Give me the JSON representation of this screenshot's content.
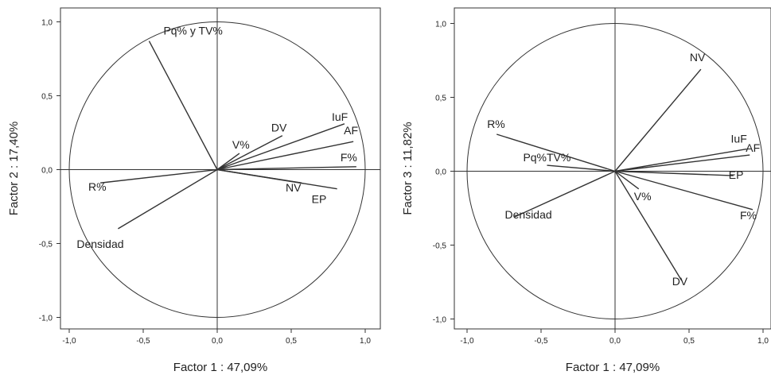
{
  "chart_data": [
    {
      "type": "scatter",
      "title": "",
      "xlabel": "Factor 1 : 47,09%",
      "ylabel": "Factor 2 : 17,40%",
      "xlim": [
        -1.0,
        1.0
      ],
      "ylim": [
        -1.0,
        1.0
      ],
      "x_ticks": [
        "-1,0",
        "-0,5",
        "0,0",
        "0,5",
        "1,0"
      ],
      "y_ticks": [
        "1,0",
        "0,5",
        "0,0",
        "-0,5",
        "-1,0"
      ],
      "unit_circle": true,
      "vectors": [
        {
          "label": "Pq% y TV%",
          "x": -0.46,
          "y": 0.87
        },
        {
          "label": "DV",
          "x": 0.44,
          "y": 0.23
        },
        {
          "label": "V%",
          "x": 0.15,
          "y": 0.11
        },
        {
          "label": "IuF",
          "x": 0.86,
          "y": 0.31
        },
        {
          "label": "AF",
          "x": 0.92,
          "y": 0.19
        },
        {
          "label": "F%",
          "x": 0.94,
          "y": 0.02
        },
        {
          "label": "NV",
          "x": 0.57,
          "y": -0.09
        },
        {
          "label": "EP",
          "x": 0.81,
          "y": -0.13
        },
        {
          "label": "R%",
          "x": -0.79,
          "y": -0.09
        },
        {
          "label": "Densidad",
          "x": -0.67,
          "y": -0.4
        }
      ]
    },
    {
      "type": "scatter",
      "title": "",
      "xlabel": "Factor 1 : 47,09%",
      "ylabel": "Factor 3 : 11,82%",
      "xlim": [
        -1.0,
        1.0
      ],
      "ylim": [
        -1.0,
        1.0
      ],
      "x_ticks": [
        "-1,0",
        "-0,5",
        "0,0",
        "0,5",
        "1,0"
      ],
      "y_ticks": [
        "1,0",
        "0,5",
        "0,0",
        "-0,5",
        "-1,0"
      ],
      "unit_circle": true,
      "vectors": [
        {
          "label": "NV",
          "x": 0.58,
          "y": 0.69
        },
        {
          "label": "R%",
          "x": -0.8,
          "y": 0.25
        },
        {
          "label": "Pq%TV%",
          "x": -0.46,
          "y": 0.04
        },
        {
          "label": "IuF",
          "x": 0.89,
          "y": 0.15
        },
        {
          "label": "AF",
          "x": 0.91,
          "y": 0.11
        },
        {
          "label": "EP",
          "x": 0.8,
          "y": -0.03
        },
        {
          "label": "V%",
          "x": 0.16,
          "y": -0.12
        },
        {
          "label": "F%",
          "x": 0.93,
          "y": -0.26
        },
        {
          "label": "DV",
          "x": 0.45,
          "y": -0.74
        },
        {
          "label": "Densidad",
          "x": -0.68,
          "y": -0.31
        }
      ]
    }
  ]
}
